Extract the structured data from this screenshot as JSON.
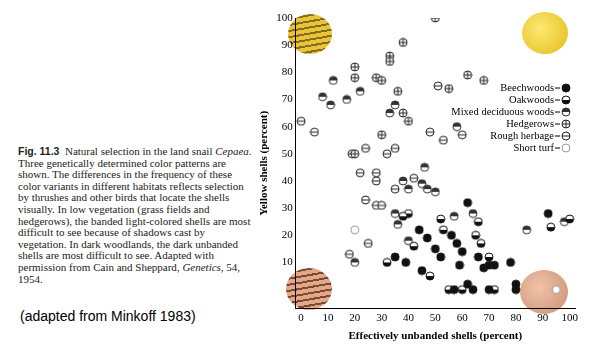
{
  "caption": {
    "label": "Fig. 11.3",
    "segments": [
      {
        "text": "Natural selection in the land snail "
      },
      {
        "text": "Cepaea",
        "italic": true
      },
      {
        "text": ". Three genetically determined color patterns are shown. The differences in the frequency of these color variants in different habitats reflects selection by thrushes and other birds that locate the shells visually. In low vegetation (grass fields and hedgerows), the banded light-colored shells are most difficult to see because of shadows cast by vegetation. In dark woodlands, the dark unbanded shells are most difficult to see. Adapted with permission from Cain and Sheppard, "
      },
      {
        "text": "Genetics",
        "italic": true
      },
      {
        "text": ", 54, 1954."
      }
    ]
  },
  "source_note": "(adapted from Minkoff 1983)",
  "chart_data": {
    "type": "scatter",
    "x_label": "Effectively unbanded shells (percent)",
    "y_label": "Yellow shells (percent)",
    "xlim": [
      -2,
      102
    ],
    "xticks": [
      0,
      10,
      20,
      30,
      40,
      50,
      60,
      70,
      80,
      90,
      100
    ],
    "ylim": [
      -7,
      100
    ],
    "yticks": [
      10,
      20,
      30,
      40,
      50,
      60,
      70,
      80,
      90,
      100
    ],
    "grid": false,
    "legend": "upper_right",
    "series": [
      {
        "name": "Beechwoods",
        "color": "#111111",
        "marker": "circle_filled",
        "x": [
          47,
          50,
          52,
          56,
          58,
          60,
          66,
          68,
          70,
          72,
          78,
          80,
          80,
          64,
          62,
          57,
          70,
          59,
          35,
          39,
          44,
          62,
          92,
          45
        ],
        "y": [
          19,
          15,
          12,
          20,
          17,
          14,
          12,
          8,
          9,
          9,
          10,
          0,
          2,
          0,
          2,
          0,
          0,
          9,
          12,
          10,
          22,
          32,
          28,
          7
        ]
      },
      {
        "name": "Oakwoods",
        "color": "#111111",
        "marker": "circle_half_bottom",
        "x": [
          40,
          38,
          42,
          48,
          55,
          60,
          72,
          65,
          67,
          53,
          70,
          32,
          93,
          100,
          66,
          52
        ],
        "y": [
          28,
          27,
          16,
          5,
          0,
          0,
          0,
          20,
          17,
          22,
          12,
          10,
          23,
          26,
          25,
          26
        ]
      },
      {
        "name": "Mixed deciduous woods",
        "color": "#333333",
        "marker": "circle_half_top",
        "x": [
          22,
          12,
          17,
          8,
          11,
          35,
          33,
          38,
          40,
          45,
          47,
          50,
          46,
          35,
          36,
          64,
          57,
          58,
          20,
          84,
          40,
          98
        ],
        "y": [
          73,
          77,
          70,
          71,
          68,
          68,
          65,
          40,
          37,
          39,
          37,
          36,
          45,
          28,
          24,
          28,
          27,
          60,
          10,
          22,
          18,
          25
        ]
      },
      {
        "name": "Hedgerows",
        "color": "#222222",
        "marker": "circle_cross",
        "x": [
          38,
          33,
          33,
          28,
          30,
          20,
          20,
          36,
          50,
          40,
          38,
          30,
          20,
          62,
          68,
          55
        ],
        "y": [
          91,
          86,
          84,
          78,
          77,
          82,
          78,
          73,
          100,
          62,
          65,
          57,
          50,
          79,
          77,
          74
        ]
      },
      {
        "name": "Rough herbage",
        "color": "#222222",
        "marker": "circle_line",
        "x": [
          0,
          5,
          19,
          24,
          32,
          35,
          22,
          28,
          28,
          24,
          28,
          30,
          35,
          42,
          48,
          51,
          53,
          60,
          25,
          18
        ],
        "y": [
          62,
          58,
          50,
          52,
          50,
          52,
          43,
          43,
          40,
          33,
          31,
          31,
          37,
          41,
          58,
          75,
          55,
          57,
          17,
          13
        ]
      },
      {
        "name": "Short turf",
        "color": "#999999",
        "marker": "circle_open",
        "x": [
          20,
          95
        ],
        "y": [
          22,
          0
        ]
      }
    ]
  }
}
